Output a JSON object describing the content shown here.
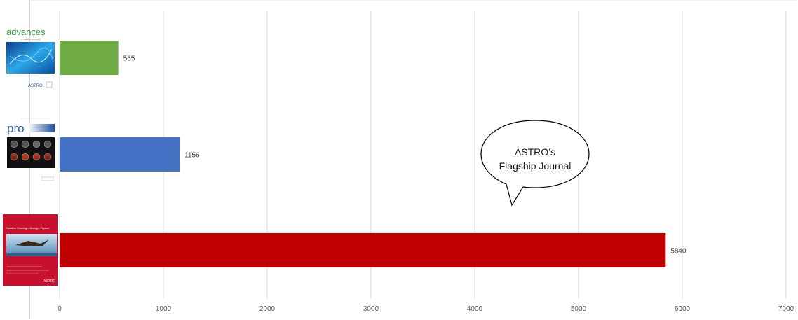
{
  "chart_data": {
    "type": "bar",
    "orientation": "horizontal",
    "categories": [
      "advances",
      "pro",
      "International Journal of Radiation Oncology • Biology • Physics"
    ],
    "values": [
      565,
      1156,
      5840
    ],
    "colors": [
      "#70ad47",
      "#4472c4",
      "#c00000"
    ],
    "xlim": [
      0,
      7000
    ],
    "xticks": [
      0,
      1000,
      2000,
      3000,
      4000,
      5000,
      6000,
      7000
    ],
    "grid": true,
    "title": "",
    "xlabel": "",
    "ylabel": "",
    "data_labels": [
      "565",
      "1156",
      "5840"
    ],
    "annotation": {
      "text_lines": [
        "ASTRO’s",
        "Flagship Journal"
      ],
      "shape": "speech-bubble"
    }
  },
  "covers": {
    "advances": {
      "title": "advances",
      "subtitle": "in radiation oncology",
      "publisher": "ASTRO",
      "title_color": "#3a9a3a"
    },
    "pro": {
      "title": "pro",
      "title_color": "#1f5fa8"
    },
    "redjournal": {
      "title": "Radiation Oncology • Biology • Physics",
      "publisher": "ASTRO",
      "bg_color": "#c8102e"
    }
  }
}
